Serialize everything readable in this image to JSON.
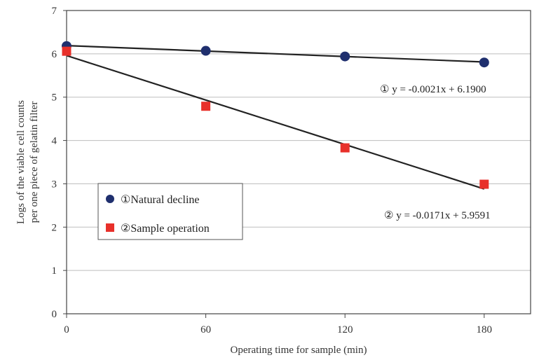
{
  "chart_data": {
    "type": "scatter",
    "title": "",
    "xlabel": "Operating time for sample (min)",
    "ylabel_lines": [
      "Logs of the viable cell counts",
      "per one piece of gelatin filter"
    ],
    "x_ticks": [
      "0",
      "60",
      "120",
      "180"
    ],
    "y_ticks": [
      "0",
      "1",
      "2",
      "3",
      "4",
      "5",
      "6",
      "7"
    ],
    "xlim": [
      0,
      200
    ],
    "ylim": [
      0,
      7
    ],
    "grid": "horizontal",
    "legend_position": "center-left",
    "series": [
      {
        "name": "①Natural decline",
        "marker": "circle",
        "color": "#1f2f6e",
        "x": [
          0,
          60,
          120,
          180
        ],
        "y": [
          6.18,
          6.07,
          5.94,
          5.8
        ],
        "fit": {
          "slope": -0.0021,
          "intercept": 6.19,
          "x_range": [
            0,
            180
          ],
          "label": "① y = -0.0021x + 6.1900"
        }
      },
      {
        "name": "②Sample operation",
        "marker": "square",
        "color": "#e8302a",
        "x": [
          0,
          60,
          120,
          180
        ],
        "y": [
          6.06,
          4.79,
          3.83,
          2.99
        ],
        "fit": {
          "slope": -0.0171,
          "intercept": 5.9591,
          "x_range": [
            0,
            180
          ],
          "label": "② y = -0.0171x + 5.9591"
        }
      }
    ]
  }
}
